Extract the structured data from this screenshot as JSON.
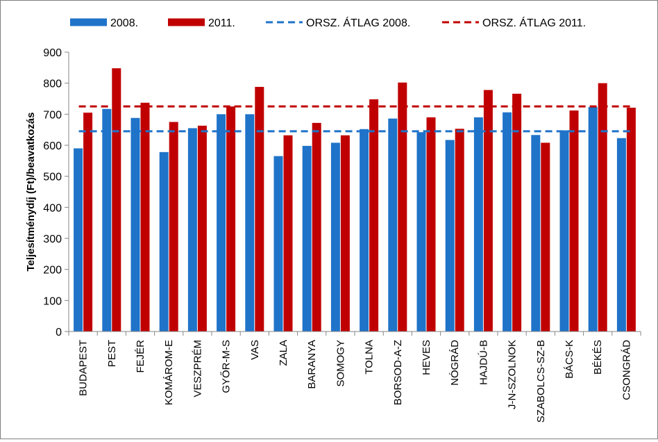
{
  "colors": {
    "series_2008": "#1f73c9",
    "series_2011": "#c00000",
    "avg_2008": "#1f73c9",
    "avg_2011": "#c00000"
  },
  "chart_data": {
    "type": "bar",
    "title": "",
    "xlabel": "",
    "ylabel": "Teljesítménydíj (Ft)/beavatkozás",
    "ylim": [
      0,
      900
    ],
    "yticks": [
      "0",
      "100",
      "200",
      "300",
      "400",
      "500",
      "600",
      "700",
      "800",
      "900"
    ],
    "categories": [
      "BUDAPEST",
      "PEST",
      "FEJÉR",
      "KOMÁROM-E",
      "VESZPRÉM",
      "GYŐR-M-S",
      "VAS",
      "ZALA",
      "BARANYA",
      "SOMOGY",
      "TOLNA",
      "BORSOD-A-Z",
      "HEVES",
      "NÓGRÁD",
      "HAJDÚ-B",
      "J-N-SZOLNOK",
      "SZABOLCS-SZ-B",
      "BÁCS-K",
      "BÉKÉS",
      "CSONGRÁD"
    ],
    "series": [
      {
        "name": "2008.",
        "values": [
          590,
          717,
          688,
          578,
          655,
          700,
          700,
          565,
          598,
          608,
          652,
          686,
          642,
          617,
          690,
          706,
          633,
          648,
          723,
          623
        ]
      },
      {
        "name": "2011.",
        "values": [
          705,
          848,
          737,
          675,
          663,
          725,
          788,
          632,
          672,
          632,
          748,
          802,
          690,
          653,
          778,
          766,
          608,
          712,
          800,
          721
        ]
      }
    ],
    "reference_lines": [
      {
        "name": "ORSZ. ÁTLAG 2008.",
        "value": 645
      },
      {
        "name": "ORSZ. ÁTLAG 2011.",
        "value": 725
      }
    ],
    "legend": {
      "position": "top",
      "entries": [
        "2008.",
        "2011.",
        "ORSZ. ÁTLAG 2008.",
        "ORSZ. ÁTLAG 2011."
      ]
    },
    "grid": false
  }
}
